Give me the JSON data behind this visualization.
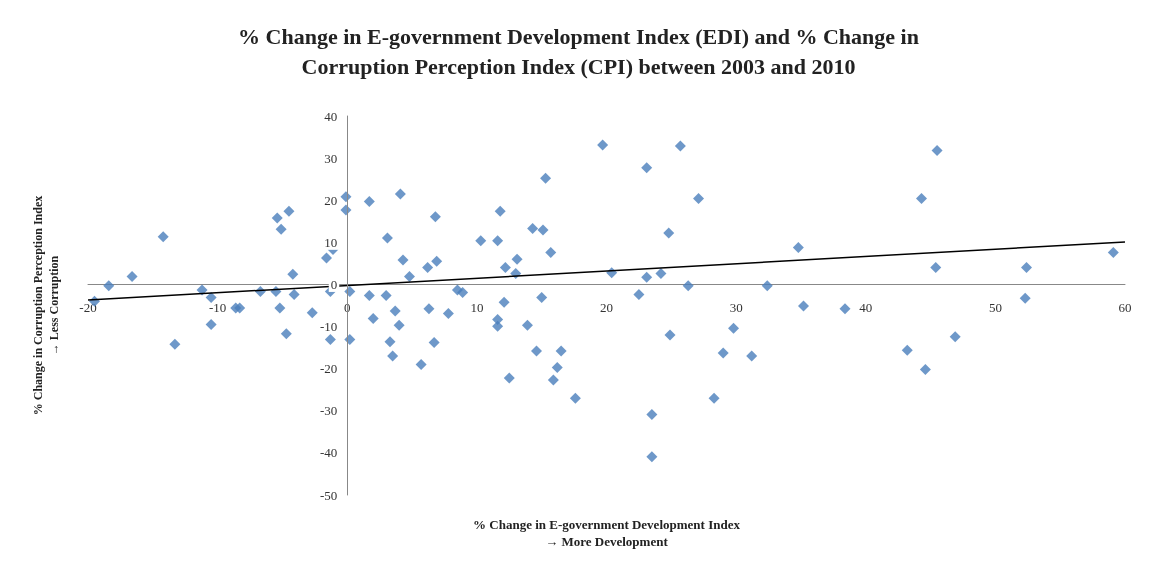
{
  "chart_data": {
    "type": "scatter",
    "title": "% Change in E-government Development Index (EDI) and % Change in\nCorruption Perception Index (CPI) between 2003 and 2010",
    "xlabel": "% Change in E-government Development Index\n→ More Development",
    "ylabel": "% Change in Corruption Perception Index\n→ Less Corruption",
    "grid": false,
    "xlim": [
      -20,
      60
    ],
    "xticks": [
      -20,
      -10,
      0,
      10,
      20,
      30,
      40,
      50,
      60
    ],
    "ylim": [
      -50,
      40
    ],
    "yticks": [
      -50,
      -40,
      -30,
      -20,
      -10,
      0,
      10,
      20,
      30,
      40
    ],
    "series": [
      {
        "marker": "diamond",
        "color": "#4a7ebb",
        "x": [
          -19.5,
          -18.4,
          -16.6,
          -14.2,
          -13.3,
          -11.2,
          -10.5,
          -10.5,
          -8.6,
          -8.3,
          -6.7,
          -5.5,
          -5.4,
          -5.1,
          -4.5,
          -4.2,
          -4.1,
          -5.2,
          -4.7,
          -2.7,
          -1.3,
          -1.6,
          -1.1,
          -1.3,
          -0.1,
          -0.1,
          0.2,
          0.2,
          1.7,
          4.1,
          3.1,
          4.3,
          4.8,
          6.8,
          6.9,
          6.2,
          1.7,
          3.0,
          3.7,
          2.0,
          4.0,
          3.3,
          3.5,
          5.7,
          6.3,
          6.7,
          7.8,
          8.5,
          8.9,
          10.3,
          11.6,
          11.8,
          12.2,
          13.1,
          13.0,
          12.1,
          11.6,
          11.6,
          12.5,
          13.9,
          14.3,
          15.1,
          15.3,
          15.7,
          15.0,
          14.6,
          16.5,
          16.2,
          15.9,
          17.6,
          19.7,
          20.4,
          23.1,
          25.7,
          27.1,
          24.8,
          23.1,
          24.2,
          22.5,
          26.3,
          32.4,
          34.8,
          35.2,
          38.4,
          24.9,
          29.8,
          29.0,
          31.2,
          28.3,
          23.5,
          23.5,
          45.5,
          44.3,
          45.4,
          52.4,
          52.3,
          59.1,
          46.9,
          43.2,
          44.6
        ],
        "values": [
          -4.0,
          -0.3,
          1.9,
          11.3,
          -14.2,
          -1.3,
          -3.1,
          -9.5,
          -5.6,
          -5.6,
          -1.7,
          -1.7,
          15.8,
          13.1,
          17.4,
          2.4,
          -2.4,
          -5.6,
          -11.7,
          -6.7,
          -13.1,
          6.3,
          8.3,
          -1.7,
          20.8,
          17.7,
          -1.7,
          -13.1,
          19.7,
          21.5,
          11.0,
          5.8,
          1.9,
          16.1,
          5.5,
          4.0,
          -2.6,
          -2.6,
          -6.3,
          -8.1,
          -9.7,
          -13.6,
          -17.0,
          -19.0,
          -5.8,
          -13.8,
          -6.9,
          -1.3,
          -1.9,
          10.4,
          10.4,
          17.4,
          4.0,
          6.0,
          2.6,
          -4.2,
          -8.3,
          -9.9,
          -22.2,
          -9.7,
          13.3,
          12.9,
          25.2,
          7.6,
          -3.1,
          -15.8,
          -15.8,
          -19.7,
          -22.7,
          -27.0,
          33.1,
          2.8,
          27.7,
          32.9,
          20.4,
          12.2,
          1.7,
          2.6,
          -2.4,
          -0.3,
          -0.3,
          8.8,
          -5.1,
          -5.8,
          -12.0,
          -10.4,
          -16.3,
          -17.0,
          -27.0,
          -30.9,
          -40.9,
          31.8,
          20.4,
          4.0,
          4.0,
          -3.3,
          7.6,
          -12.4,
          -15.6,
          -20.2
        ]
      },
      {
        "type": "line",
        "marker": "none",
        "color": "#000000",
        "x": [
          -20,
          60
        ],
        "values": [
          -3.7,
          10.1
        ]
      }
    ]
  }
}
